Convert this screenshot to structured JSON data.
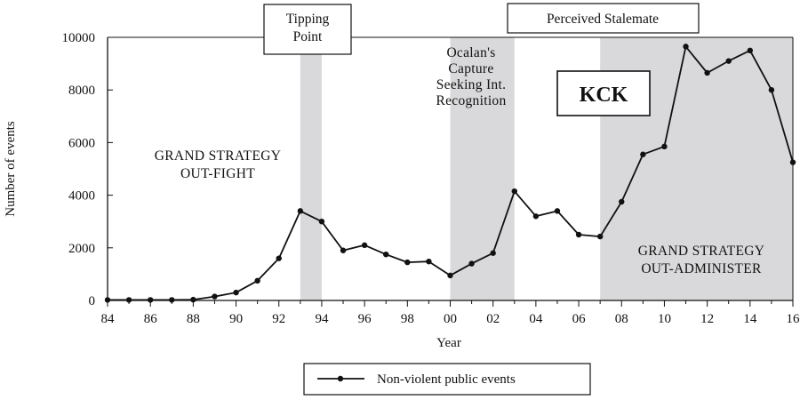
{
  "chart_data": {
    "type": "line",
    "ylabel": "Number of events",
    "xlabel": "Year",
    "x_tick_labels": [
      "84",
      "86",
      "88",
      "90",
      "92",
      "94",
      "96",
      "98",
      "00",
      "02",
      "04",
      "06",
      "08",
      "10",
      "12",
      "14",
      "16"
    ],
    "y_tick_labels": [
      "0",
      "2000",
      "4000",
      "6000",
      "8000",
      "10000"
    ],
    "ylim": [
      0,
      10000
    ],
    "xlim": [
      1984,
      2016
    ],
    "grid": false,
    "legend_position": "bottom-center",
    "series": [
      {
        "name": "Non-violent public events",
        "x": [
          1984,
          1985,
          1986,
          1987,
          1988,
          1989,
          1990,
          1991,
          1992,
          1993,
          1994,
          1995,
          1996,
          1997,
          1998,
          1999,
          2000,
          2001,
          2002,
          2003,
          2004,
          2005,
          2006,
          2007,
          2008,
          2009,
          2010,
          2011,
          2012,
          2013,
          2014,
          2015,
          2016
        ],
        "values": [
          20,
          20,
          20,
          20,
          30,
          150,
          300,
          750,
          1600,
          3400,
          3000,
          1900,
          2100,
          1750,
          1450,
          1480,
          950,
          1400,
          1800,
          4150,
          3200,
          3400,
          2500,
          2430,
          3750,
          5550,
          5850,
          9650,
          8650,
          9100,
          9500,
          8000,
          5250
        ]
      }
    ],
    "shaded_periods": [
      {
        "from": 1993,
        "to": 1994
      },
      {
        "from": 2000,
        "to": 2003
      },
      {
        "from": 2007,
        "to": 2016
      }
    ],
    "annotations": {
      "tipping_point": [
        "Tipping",
        "Point"
      ],
      "perceived_stalemate": "Perceived Stalemate",
      "ocalan": [
        "Ocalan's",
        "Capture",
        "Seeking Int.",
        "Recognition"
      ],
      "kck": "KCK",
      "out_fight": [
        "GRAND STRATEGY",
        "OUT-FIGHT"
      ],
      "out_administer": [
        "GRAND STRATEGY",
        "OUT-ADMINISTER"
      ]
    },
    "colors": {
      "line": "#111111",
      "shade": "#d9d9db",
      "axis": "#111111"
    }
  }
}
